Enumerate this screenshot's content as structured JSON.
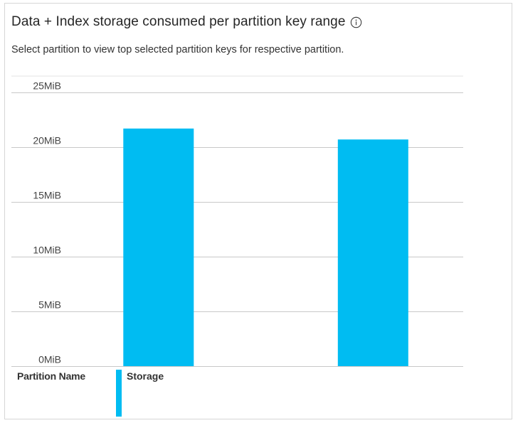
{
  "card": {
    "title": "Data + Index storage consumed per partition key range",
    "info_icon": "info-circle-icon",
    "subtitle": "Select partition to view top selected partition keys for respective partition."
  },
  "legend": {
    "column_header": "Partition Name",
    "series_label": "Storage"
  },
  "colors": {
    "bar": "#00bcf2",
    "gridline": "#c8c8c8",
    "border": "#d6d6d6"
  },
  "chart_data": {
    "type": "bar",
    "title": "Data + Index storage consumed per partition key range",
    "xlabel": "",
    "ylabel": "",
    "categories": [
      "",
      ""
    ],
    "series": [
      {
        "name": "Storage",
        "values": [
          21.7,
          20.7
        ]
      }
    ],
    "unit": "MiB",
    "ylim": [
      0,
      25
    ],
    "yticks": [
      0,
      5,
      10,
      15,
      20,
      25
    ],
    "ytick_labels": [
      "0MiB",
      "5MiB",
      "10MiB",
      "15MiB",
      "20MiB",
      "25MiB"
    ],
    "grid": true,
    "legend_position": "bottom-left"
  }
}
